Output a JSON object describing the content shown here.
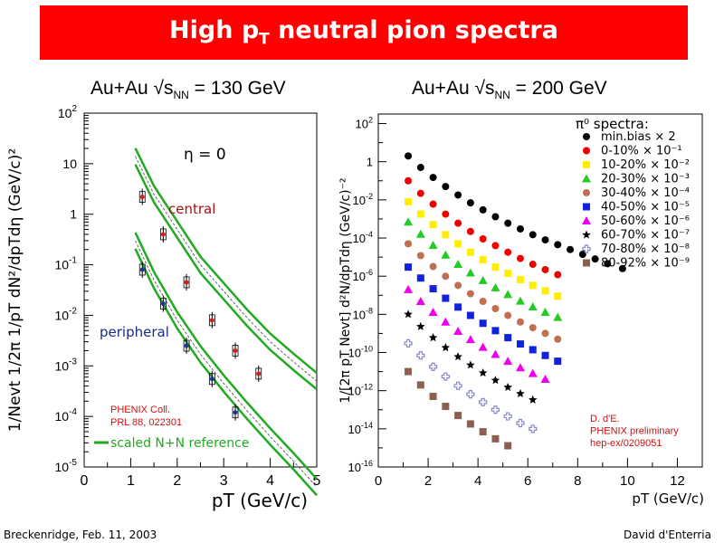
{
  "slide": {
    "title_main": "High p",
    "title_sub": "T",
    "title_rest": " neutral pion spectra",
    "footer_left": "Breckenridge, Feb. 11, 2003",
    "footer_right": "David d'Enterria"
  },
  "colors": {
    "banner": "#ff0000",
    "band": "#22aa22",
    "central_label": "#aa1111",
    "peripheral_label": "#1a2a8a",
    "credit": "#cc1111"
  },
  "left_panel": {
    "title_pre": "Au+Au √s",
    "title_sub": "NN",
    "title_post": " = 130 GeV"
  },
  "right_panel": {
    "title_pre": "Au+Au √s",
    "title_sub": "NN",
    "title_post": " = 200 GeV"
  },
  "chart_data": [
    {
      "type": "scatter",
      "title": "",
      "xlabel": "pT (GeV/c)",
      "ylabel": "1/Nevt 1/2π 1/pT dN²/dpTdη (GeV/c)²",
      "xlim": [
        0,
        5
      ],
      "ylim_log10": [
        -5,
        2
      ],
      "x_ticks": [
        "0",
        "1",
        "2",
        "3",
        "4",
        "5"
      ],
      "y_ticks": [
        "10^2",
        "10",
        "1",
        "10^-1",
        "10^-2",
        "10^-3",
        "10^-4",
        "10^-5"
      ],
      "annotations": {
        "eta": "η = 0",
        "central": "central",
        "peripheral": "peripheral",
        "credit_line1": "PHENIX Coll.",
        "credit_line2": "PRL 88, 022301",
        "legend": "scaled N+N reference"
      },
      "series": [
        {
          "name": "central",
          "points": [
            {
              "x": 1.25,
              "y": 2.2
            },
            {
              "x": 1.7,
              "y": 0.4
            },
            {
              "x": 2.2,
              "y": 0.045
            },
            {
              "x": 2.75,
              "y": 0.008
            },
            {
              "x": 3.25,
              "y": 0.002
            },
            {
              "x": 3.75,
              "y": 0.0007
            }
          ]
        },
        {
          "name": "peripheral",
          "points": [
            {
              "x": 1.25,
              "y": 0.08
            },
            {
              "x": 1.7,
              "y": 0.017
            },
            {
              "x": 2.2,
              "y": 0.0025
            },
            {
              "x": 2.75,
              "y": 0.00055
            },
            {
              "x": 3.25,
              "y": 0.00012
            }
          ]
        }
      ],
      "bands": [
        {
          "name": "central reference",
          "points": [
            {
              "x": 1.1,
              "y": 14
            },
            {
              "x": 1.5,
              "y": 2.5
            },
            {
              "x": 2.0,
              "y": 0.5
            },
            {
              "x": 2.5,
              "y": 0.1
            },
            {
              "x": 3.0,
              "y": 0.03
            },
            {
              "x": 3.5,
              "y": 0.009
            },
            {
              "x": 4.0,
              "y": 0.003
            },
            {
              "x": 4.5,
              "y": 0.0012
            },
            {
              "x": 5.0,
              "y": 0.0005
            }
          ]
        },
        {
          "name": "peripheral reference",
          "points": [
            {
              "x": 1.1,
              "y": 0.3
            },
            {
              "x": 1.5,
              "y": 0.05
            },
            {
              "x": 2.0,
              "y": 0.008
            },
            {
              "x": 2.5,
              "y": 0.0017
            },
            {
              "x": 3.0,
              "y": 0.00045
            },
            {
              "x": 3.5,
              "y": 0.00013
            },
            {
              "x": 4.0,
              "y": 4e-05
            },
            {
              "x": 4.5,
              "y": 1.3e-05
            },
            {
              "x": 5.0,
              "y": 4e-06
            }
          ]
        }
      ]
    },
    {
      "type": "scatter",
      "title": "",
      "xlabel": "pT (GeV/c)",
      "ylabel": "1/[2π pT Nevt] d²N/dpTdη (GeV/c)⁻²",
      "xlim": [
        0,
        13
      ],
      "ylim_log10": [
        -16,
        2.5
      ],
      "x_ticks": [
        "0",
        "2",
        "4",
        "6",
        "8",
        "10",
        "12"
      ],
      "y_ticks": [
        "10^2",
        "1",
        "10^-2",
        "10^-4",
        "10^-6",
        "10^-8",
        "10^-10",
        "10^-12",
        "10^-14",
        "10^-16"
      ],
      "legend_title": "π⁰ spectra:",
      "legend": [
        {
          "label": "min.bias × 2",
          "color": "#000000",
          "marker": "circle"
        },
        {
          "label": "0-10% × 10⁻¹",
          "color": "#ee0000",
          "marker": "circle"
        },
        {
          "label": "10-20% × 10⁻²",
          "color": "#ffee00",
          "marker": "square"
        },
        {
          "label": "20-30% × 10⁻³",
          "color": "#22cc22",
          "marker": "triangle"
        },
        {
          "label": "30-40% × 10⁻⁴",
          "color": "#c07050",
          "marker": "circle"
        },
        {
          "label": "40-50% × 10⁻⁵",
          "color": "#1122dd",
          "marker": "square"
        },
        {
          "label": "50-60% × 10⁻⁶",
          "color": "#ee00ee",
          "marker": "triangle"
        },
        {
          "label": "60-70% × 10⁻⁷",
          "color": "#000000",
          "marker": "star"
        },
        {
          "label": "70-80% × 10⁻⁸",
          "color": "#8888cc",
          "marker": "cross"
        },
        {
          "label": "80-92% × 10⁻⁹",
          "color": "#8b6050",
          "marker": "square"
        }
      ],
      "credit": [
        "D. d'E.",
        "PHENIX preliminary",
        "hep-ex/0209051"
      ],
      "series": [
        {
          "name": "min.bias",
          "points": [
            {
              "x": 1.2,
              "y": 2
            },
            {
              "x": 1.7,
              "y": 0.5
            },
            {
              "x": 2.2,
              "y": 0.15
            },
            {
              "x": 2.7,
              "y": 0.05
            },
            {
              "x": 3.2,
              "y": 0.018
            },
            {
              "x": 3.7,
              "y": 0.007
            },
            {
              "x": 4.2,
              "y": 0.003
            },
            {
              "x": 4.7,
              "y": 0.0013
            },
            {
              "x": 5.2,
              "y": 0.0006
            },
            {
              "x": 5.7,
              "y": 0.0003
            },
            {
              "x": 6.2,
              "y": 0.00015
            },
            {
              "x": 6.7,
              "y": 8e-05
            },
            {
              "x": 7.2,
              "y": 4.5e-05
            },
            {
              "x": 7.7,
              "y": 2.5e-05
            },
            {
              "x": 8.2,
              "y": 1.4e-05
            },
            {
              "x": 8.7,
              "y": 8e-06
            },
            {
              "x": 9.2,
              "y": 4.5e-06
            },
            {
              "x": 9.8,
              "y": 2.5e-06
            }
          ]
        },
        {
          "name": "0-10%",
          "points": [
            {
              "x": 1.2,
              "y": 0.1
            },
            {
              "x": 1.7,
              "y": 0.022
            },
            {
              "x": 2.2,
              "y": 0.006
            },
            {
              "x": 2.7,
              "y": 0.0018
            },
            {
              "x": 3.2,
              "y": 0.0006
            },
            {
              "x": 3.7,
              "y": 0.00022
            },
            {
              "x": 4.2,
              "y": 9e-05
            },
            {
              "x": 4.7,
              "y": 4e-05
            },
            {
              "x": 5.2,
              "y": 1.8e-05
            },
            {
              "x": 5.7,
              "y": 8.5e-06
            },
            {
              "x": 6.2,
              "y": 4.2e-06
            },
            {
              "x": 6.7,
              "y": 2.2e-06
            },
            {
              "x": 7.2,
              "y": 1.2e-06
            }
          ]
        },
        {
          "name": "10-20%",
          "points": [
            {
              "x": 1.2,
              "y": 0.008
            },
            {
              "x": 1.7,
              "y": 0.0018
            },
            {
              "x": 2.2,
              "y": 0.0005
            },
            {
              "x": 2.7,
              "y": 0.00015
            },
            {
              "x": 3.2,
              "y": 5e-05
            },
            {
              "x": 3.7,
              "y": 1.8e-05
            },
            {
              "x": 4.2,
              "y": 7.2e-06
            },
            {
              "x": 4.7,
              "y": 3e-06
            },
            {
              "x": 5.2,
              "y": 1.4e-06
            },
            {
              "x": 5.7,
              "y": 6.6e-07
            },
            {
              "x": 6.2,
              "y": 3.3e-07
            },
            {
              "x": 6.7,
              "y": 1.7e-07
            },
            {
              "x": 7.2,
              "y": 9e-08
            }
          ]
        },
        {
          "name": "20-30%",
          "points": [
            {
              "x": 1.2,
              "y": 0.0007
            },
            {
              "x": 1.7,
              "y": 0.00016
            },
            {
              "x": 2.2,
              "y": 4.2e-05
            },
            {
              "x": 2.7,
              "y": 1.3e-05
            },
            {
              "x": 3.2,
              "y": 4.2e-06
            },
            {
              "x": 3.7,
              "y": 1.5e-06
            },
            {
              "x": 4.2,
              "y": 6e-07
            },
            {
              "x": 4.7,
              "y": 2.5e-07
            },
            {
              "x": 5.2,
              "y": 1.1e-07
            },
            {
              "x": 5.7,
              "y": 5e-08
            },
            {
              "x": 6.2,
              "y": 2.5e-08
            },
            {
              "x": 6.7,
              "y": 1.3e-08
            },
            {
              "x": 7.2,
              "y": 7e-09
            }
          ]
        },
        {
          "name": "30-40%",
          "points": [
            {
              "x": 1.2,
              "y": 5e-05
            },
            {
              "x": 1.7,
              "y": 1.2e-05
            },
            {
              "x": 2.2,
              "y": 3.2e-06
            },
            {
              "x": 2.7,
              "y": 1e-06
            },
            {
              "x": 3.2,
              "y": 3.3e-07
            },
            {
              "x": 3.7,
              "y": 1.2e-07
            },
            {
              "x": 4.2,
              "y": 4.8e-08
            },
            {
              "x": 4.7,
              "y": 2e-08
            },
            {
              "x": 5.2,
              "y": 8.8e-09
            },
            {
              "x": 5.7,
              "y": 4e-09
            },
            {
              "x": 6.2,
              "y": 2e-09
            },
            {
              "x": 6.7,
              "y": 1e-09
            },
            {
              "x": 7.2,
              "y": 5e-10
            }
          ]
        },
        {
          "name": "40-50%",
          "points": [
            {
              "x": 1.2,
              "y": 3e-06
            },
            {
              "x": 1.7,
              "y": 8e-07
            },
            {
              "x": 2.2,
              "y": 2.2e-07
            },
            {
              "x": 2.7,
              "y": 7e-08
            },
            {
              "x": 3.2,
              "y": 2.4e-08
            },
            {
              "x": 3.7,
              "y": 8.8e-09
            },
            {
              "x": 4.2,
              "y": 3.4e-09
            },
            {
              "x": 4.7,
              "y": 1.4e-09
            },
            {
              "x": 5.2,
              "y": 6e-10
            },
            {
              "x": 5.7,
              "y": 2.8e-10
            },
            {
              "x": 6.2,
              "y": 1.4e-10
            },
            {
              "x": 6.7,
              "y": 7e-11
            },
            {
              "x": 7.2,
              "y": 3.5e-11
            }
          ]
        },
        {
          "name": "50-60%",
          "points": [
            {
              "x": 1.2,
              "y": 2e-07
            },
            {
              "x": 1.7,
              "y": 4.8e-08
            },
            {
              "x": 2.2,
              "y": 1.3e-08
            },
            {
              "x": 2.7,
              "y": 4e-09
            },
            {
              "x": 3.2,
              "y": 1.3e-09
            },
            {
              "x": 3.7,
              "y": 4.8e-10
            },
            {
              "x": 4.2,
              "y": 1.9e-10
            },
            {
              "x": 4.7,
              "y": 8e-11
            },
            {
              "x": 5.2,
              "y": 3.5e-11
            },
            {
              "x": 5.7,
              "y": 1.6e-11
            },
            {
              "x": 6.2,
              "y": 8e-12
            },
            {
              "x": 6.7,
              "y": 4e-12
            }
          ]
        },
        {
          "name": "60-70%",
          "points": [
            {
              "x": 1.2,
              "y": 1e-08
            },
            {
              "x": 1.7,
              "y": 2.3e-09
            },
            {
              "x": 2.2,
              "y": 6e-10
            },
            {
              "x": 2.7,
              "y": 1.8e-10
            },
            {
              "x": 3.2,
              "y": 6e-11
            },
            {
              "x": 3.7,
              "y": 2.2e-11
            },
            {
              "x": 4.2,
              "y": 8.5e-12
            },
            {
              "x": 4.7,
              "y": 3.5e-12
            },
            {
              "x": 5.2,
              "y": 1.5e-12
            },
            {
              "x": 5.7,
              "y": 7e-13
            },
            {
              "x": 6.2,
              "y": 3.3e-13
            }
          ]
        },
        {
          "name": "70-80%",
          "points": [
            {
              "x": 1.2,
              "y": 3e-10
            },
            {
              "x": 1.7,
              "y": 7e-11
            },
            {
              "x": 2.2,
              "y": 1.8e-11
            },
            {
              "x": 2.7,
              "y": 5.5e-12
            },
            {
              "x": 3.2,
              "y": 1.8e-12
            },
            {
              "x": 3.7,
              "y": 6.5e-13
            },
            {
              "x": 4.2,
              "y": 2.5e-13
            },
            {
              "x": 4.7,
              "y": 1e-13
            },
            {
              "x": 5.2,
              "y": 4.5e-14
            },
            {
              "x": 5.7,
              "y": 2e-14
            },
            {
              "x": 6.2,
              "y": 1e-14
            }
          ]
        },
        {
          "name": "80-92%",
          "points": [
            {
              "x": 1.2,
              "y": 1e-11
            },
            {
              "x": 1.7,
              "y": 2e-12
            },
            {
              "x": 2.2,
              "y": 5e-13
            },
            {
              "x": 2.7,
              "y": 1.5e-13
            },
            {
              "x": 3.2,
              "y": 5e-14
            },
            {
              "x": 3.7,
              "y": 1.8e-14
            },
            {
              "x": 4.2,
              "y": 7e-15
            },
            {
              "x": 4.7,
              "y": 3e-15
            },
            {
              "x": 5.2,
              "y": 1.3e-15
            }
          ]
        }
      ]
    }
  ]
}
